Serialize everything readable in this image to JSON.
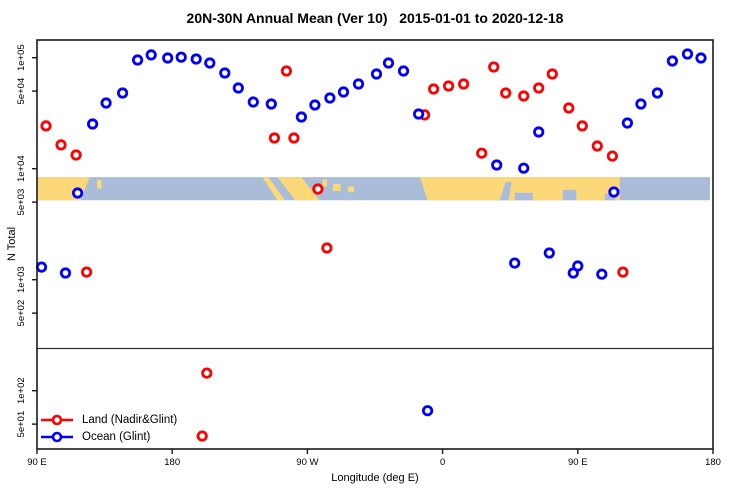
{
  "chart_data": {
    "type": "scatter",
    "title": "20N-30N Annual Mean (Ver 10)   2015-01-01 to 2020-12-18",
    "xlabel": "Longitude (deg E)",
    "ylabel": "N Total",
    "x_axis": {
      "range_deg_east": [
        90,
        540
      ],
      "ticks": [
        {
          "lon": 90,
          "label": "90 E"
        },
        {
          "lon": 180,
          "label": "180"
        },
        {
          "lon": 270,
          "label": "90 W"
        },
        {
          "lon": 360,
          "label": "0"
        },
        {
          "lon": 450,
          "label": "90 E"
        },
        {
          "lon": 540,
          "label": "180"
        }
      ]
    },
    "y_axis": {
      "scale": "log10",
      "range": [
        40,
        200000
      ],
      "ticks": [
        {
          "value": 100000,
          "label": "1e+05"
        },
        {
          "value": 50000,
          "label": "5e+04"
        },
        {
          "value": 10000,
          "label": "1e+04"
        },
        {
          "value": 5000,
          "label": "5e+03"
        },
        {
          "value": 1000,
          "label": "1e+03"
        },
        {
          "value": 500,
          "label": "5e+02"
        },
        {
          "value": 100,
          "label": "1e+02"
        },
        {
          "value": 50,
          "label": "5e+01"
        }
      ]
    },
    "divider_value": 240,
    "map_strip": {
      "value_top": 8400,
      "value_bottom": 5200,
      "lon_range": [
        90,
        538
      ],
      "ocean_color": "#a9bdd9",
      "land_color": "#fcd878",
      "land_polygons": [
        [
          [
            90,
            0
          ],
          [
            125,
            0
          ],
          [
            119,
            1
          ],
          [
            90,
            1
          ]
        ],
        [
          [
            130,
            0.12
          ],
          [
            133,
            0.12
          ],
          [
            133,
            0.5
          ],
          [
            130,
            0.5
          ]
        ],
        [
          [
            240,
            0
          ],
          [
            244,
            0
          ],
          [
            255,
            1
          ],
          [
            250,
            1
          ]
        ],
        [
          [
            250,
            0
          ],
          [
            266,
            0
          ],
          [
            278,
            1
          ],
          [
            262,
            1
          ]
        ],
        [
          [
            280,
            0.1
          ],
          [
            283,
            0.1
          ],
          [
            283,
            0.4
          ],
          [
            280,
            0.4
          ]
        ],
        [
          [
            287,
            0.3
          ],
          [
            292,
            0.3
          ],
          [
            292,
            0.6
          ],
          [
            287,
            0.6
          ]
        ],
        [
          [
            297,
            0.4
          ],
          [
            301,
            0.4
          ],
          [
            301,
            0.65
          ],
          [
            297,
            0.65
          ]
        ],
        [
          [
            345,
            0
          ],
          [
            478,
            0
          ],
          [
            478,
            1
          ],
          [
            350,
            1
          ]
        ]
      ],
      "water_patches": [
        [
          [
            402,
            0.2
          ],
          [
            406,
            0.2
          ],
          [
            404,
            1
          ],
          [
            398,
            1
          ]
        ],
        [
          [
            408,
            0.68
          ],
          [
            420,
            0.68
          ],
          [
            420,
            1
          ],
          [
            408,
            1
          ]
        ],
        [
          [
            440,
            0.55
          ],
          [
            449,
            0.55
          ],
          [
            449,
            1
          ],
          [
            440,
            1
          ]
        ],
        [
          [
            468,
            0.72
          ],
          [
            475,
            0.72
          ],
          [
            475,
            1
          ],
          [
            468,
            1
          ]
        ]
      ]
    },
    "series": [
      {
        "name": "Land (Nadir&Glint)",
        "color": "#ff0000",
        "points": [
          [
            96,
            24300
          ],
          [
            106,
            16400
          ],
          [
            116,
            13300
          ],
          [
            123,
            1170
          ],
          [
            200,
            39
          ],
          [
            203,
            144
          ],
          [
            248,
            18900
          ],
          [
            256,
            75900
          ],
          [
            261,
            18900
          ],
          [
            277,
            6560
          ],
          [
            283,
            1930
          ],
          [
            348,
            30500
          ],
          [
            354,
            52200
          ],
          [
            364,
            55600
          ],
          [
            374,
            57900
          ],
          [
            386,
            13800
          ],
          [
            394,
            82400
          ],
          [
            402,
            48100
          ],
          [
            414,
            45200
          ],
          [
            424,
            53300
          ],
          [
            433,
            71300
          ],
          [
            444,
            35200
          ],
          [
            453,
            24300
          ],
          [
            463,
            16000
          ],
          [
            473,
            13000
          ],
          [
            480,
            1170
          ]
        ]
      },
      {
        "name": "Ocean (Glint)",
        "color": "#0000ff",
        "points": [
          [
            93,
            1300
          ],
          [
            109,
            1150
          ],
          [
            117,
            6040
          ],
          [
            127,
            25300
          ],
          [
            136,
            39100
          ],
          [
            147,
            48100
          ],
          [
            157,
            95300
          ],
          [
            166,
            106000
          ],
          [
            177,
            99300
          ],
          [
            186,
            101000
          ],
          [
            196,
            97300
          ],
          [
            205,
            89600
          ],
          [
            215,
            72800
          ],
          [
            224,
            53300
          ],
          [
            234,
            39900
          ],
          [
            246,
            38300
          ],
          [
            266,
            29200
          ],
          [
            275,
            37500
          ],
          [
            285,
            43300
          ],
          [
            294,
            49100
          ],
          [
            304,
            57900
          ],
          [
            316,
            71300
          ],
          [
            324,
            89600
          ],
          [
            334,
            75900
          ],
          [
            344,
            31100
          ],
          [
            350,
            66
          ],
          [
            396,
            10800
          ],
          [
            408,
            1410
          ],
          [
            414,
            10100
          ],
          [
            424,
            21400
          ],
          [
            431,
            1740
          ],
          [
            447,
            1150
          ],
          [
            450,
            1330
          ],
          [
            466,
            1120
          ],
          [
            474,
            6170
          ],
          [
            483,
            25800
          ],
          [
            492,
            38300
          ],
          [
            503,
            48100
          ],
          [
            513,
            93300
          ],
          [
            523,
            108000
          ],
          [
            532,
            99300
          ]
        ]
      }
    ]
  }
}
